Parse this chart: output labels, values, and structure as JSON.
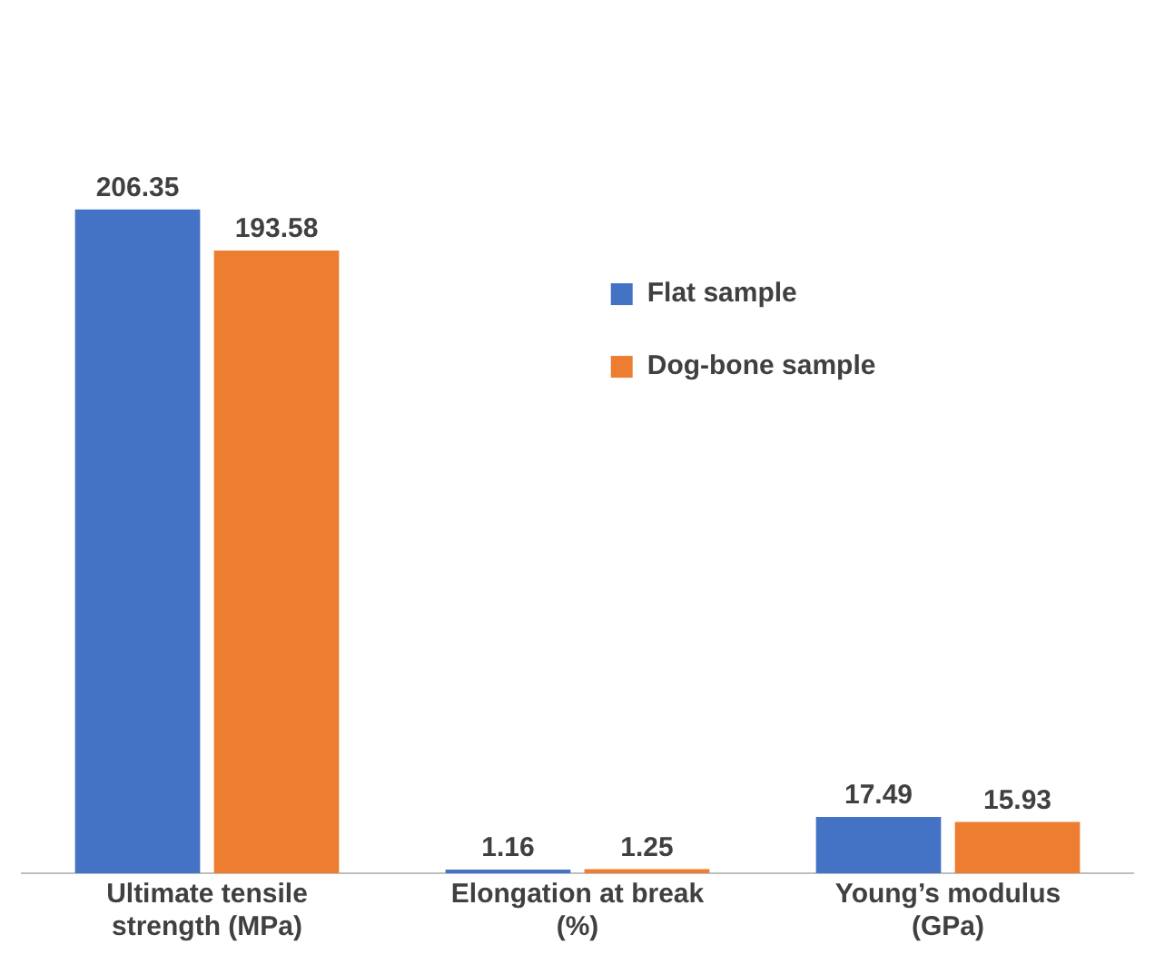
{
  "chart_data": {
    "type": "bar",
    "categories": [
      "Ultimate tensile strength (MPa)",
      "Elongation at break (%)",
      "Young’s modulus (GPa)"
    ],
    "series": [
      {
        "name": "Flat sample",
        "color": "#4472c4",
        "values": [
          206.35,
          1.16,
          17.49
        ]
      },
      {
        "name": "Dog-bone sample",
        "color": "#ed7d31",
        "values": [
          193.58,
          1.25,
          15.93
        ]
      }
    ],
    "data_labels": true,
    "legend": "right"
  }
}
